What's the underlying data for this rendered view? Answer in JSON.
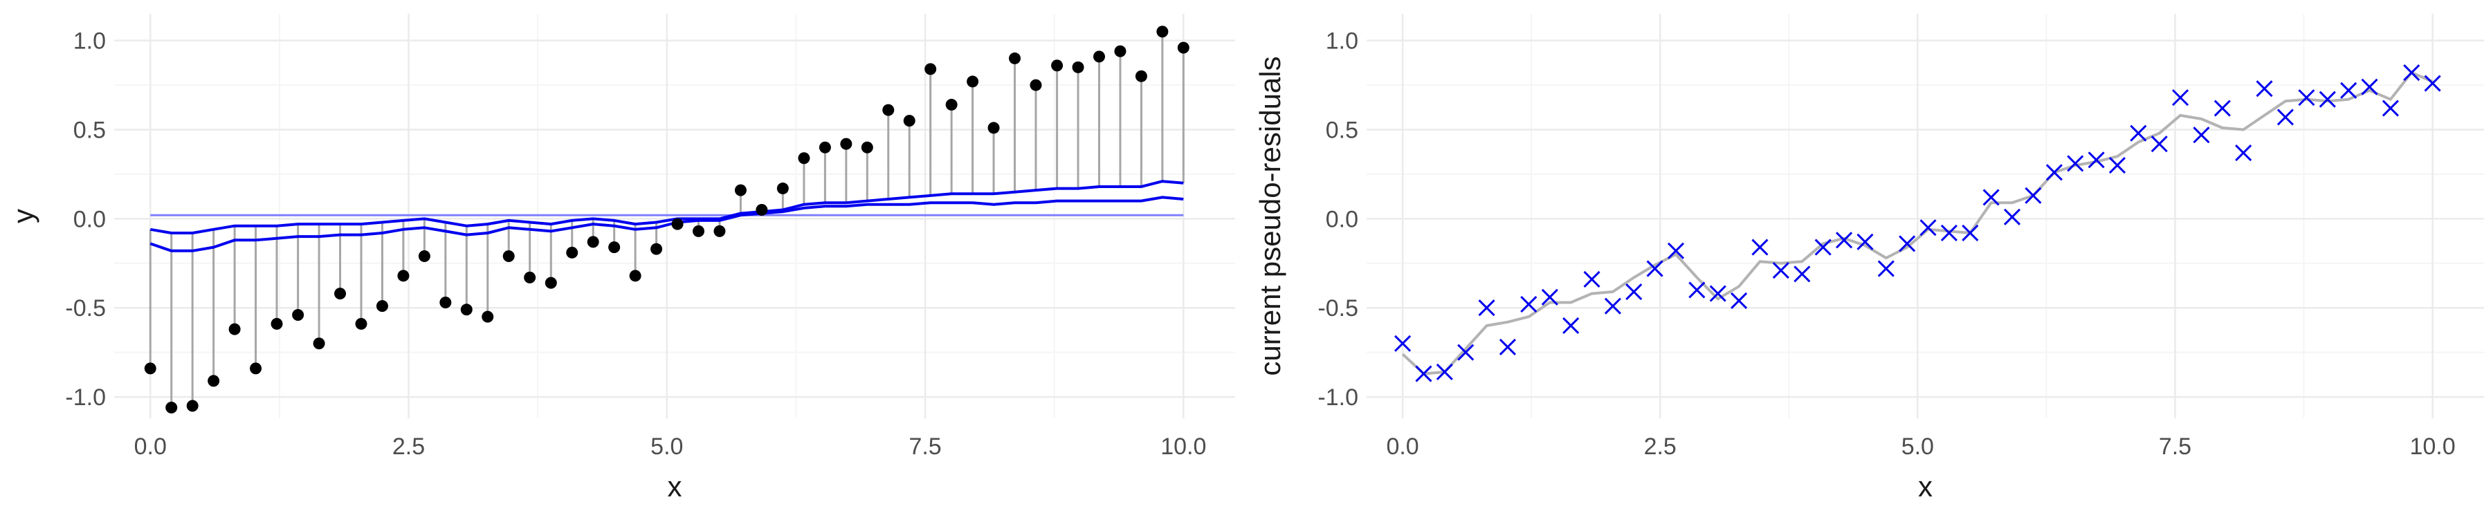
{
  "colors": {
    "background": "#ffffff",
    "grid_major": "#ebebeb",
    "grid_minor": "#f5f5f5",
    "tick_text": "#4d4d4d",
    "title_text": "#1a1a1a",
    "points": "#000000",
    "stems": "#a6a6a6",
    "fit_lines": "#0000ee",
    "baseline_line": "#8080ff",
    "crosses": "#0000ee",
    "smooth_line": "#b3b3b3"
  },
  "chart_data": [
    {
      "type": "scatter",
      "title": "",
      "xlabel": "x",
      "ylabel": "y",
      "xlim": [
        -0.35,
        10.5
      ],
      "ylim": [
        -1.12,
        1.15
      ],
      "x_ticks": [
        "0.0",
        "2.5",
        "5.0",
        "7.5",
        "10.0"
      ],
      "x_tick_values": [
        0,
        2.5,
        5,
        7.5,
        10
      ],
      "y_ticks": [
        "-1.0",
        "-0.5",
        "0.0",
        "0.5",
        "1.0"
      ],
      "y_tick_values": [
        -1,
        -0.5,
        0,
        0.5,
        1
      ],
      "grid": true,
      "legend": "none",
      "x": [
        0.0,
        0.204,
        0.408,
        0.612,
        0.816,
        1.02,
        1.224,
        1.429,
        1.633,
        1.837,
        2.041,
        2.245,
        2.449,
        2.653,
        2.857,
        3.061,
        3.265,
        3.469,
        3.673,
        3.878,
        4.082,
        4.286,
        4.49,
        4.694,
        4.898,
        5.102,
        5.306,
        5.51,
        5.714,
        5.918,
        6.122,
        6.327,
        6.531,
        6.735,
        6.939,
        7.143,
        7.347,
        7.551,
        7.755,
        7.959,
        8.163,
        8.367,
        8.571,
        8.776,
        8.98,
        9.184,
        9.388,
        9.592,
        9.796,
        10.0
      ],
      "series": [
        {
          "kind": "points_with_stems",
          "values": [
            -0.84,
            -1.06,
            -1.05,
            -0.91,
            -0.62,
            -0.84,
            -0.59,
            -0.54,
            -0.7,
            -0.42,
            -0.59,
            -0.49,
            -0.32,
            -0.21,
            -0.47,
            -0.51,
            -0.55,
            -0.21,
            -0.33,
            -0.36,
            -0.19,
            -0.13,
            -0.16,
            -0.32,
            -0.17,
            -0.03,
            -0.07,
            -0.07,
            0.16,
            0.05,
            0.17,
            0.34,
            0.4,
            0.42,
            0.4,
            0.61,
            0.55,
            0.84,
            0.64,
            0.77,
            0.51,
            0.9,
            0.75,
            0.86,
            0.85,
            0.91,
            0.94,
            0.8,
            1.05,
            0.96
          ]
        },
        {
          "kind": "line",
          "values": [
            -0.06,
            -0.08,
            -0.08,
            -0.06,
            -0.04,
            -0.04,
            -0.04,
            -0.03,
            -0.03,
            -0.03,
            -0.03,
            -0.02,
            -0.01,
            0.0,
            -0.02,
            -0.04,
            -0.03,
            -0.01,
            -0.02,
            -0.03,
            -0.01,
            0.0,
            -0.01,
            -0.03,
            -0.02,
            0.0,
            0.0,
            0.0,
            0.03,
            0.04,
            0.05,
            0.08,
            0.09,
            0.09,
            0.1,
            0.11,
            0.12,
            0.13,
            0.14,
            0.14,
            0.14,
            0.15,
            0.16,
            0.17,
            0.17,
            0.18,
            0.18,
            0.18,
            0.21,
            0.2
          ]
        },
        {
          "kind": "line",
          "values": [
            -0.14,
            -0.18,
            -0.18,
            -0.16,
            -0.12,
            -0.12,
            -0.11,
            -0.1,
            -0.1,
            -0.09,
            -0.09,
            -0.08,
            -0.06,
            -0.05,
            -0.07,
            -0.09,
            -0.08,
            -0.05,
            -0.06,
            -0.07,
            -0.05,
            -0.03,
            -0.04,
            -0.06,
            -0.05,
            -0.02,
            -0.01,
            -0.01,
            0.02,
            0.03,
            0.04,
            0.06,
            0.07,
            0.07,
            0.08,
            0.08,
            0.08,
            0.09,
            0.09,
            0.09,
            0.08,
            0.09,
            0.09,
            0.1,
            0.1,
            0.1,
            0.1,
            0.1,
            0.12,
            0.11
          ]
        },
        {
          "kind": "hline",
          "value": 0.02
        }
      ]
    },
    {
      "type": "scatter",
      "title": "",
      "xlabel": "x",
      "ylabel": "current pseudo-residuals",
      "xlim": [
        -0.35,
        10.5
      ],
      "ylim": [
        -1.12,
        1.15
      ],
      "x_ticks": [
        "0.0",
        "2.5",
        "5.0",
        "7.5",
        "10.0"
      ],
      "x_tick_values": [
        0,
        2.5,
        5,
        7.5,
        10
      ],
      "y_ticks": [
        "-1.0",
        "-0.5",
        "0.0",
        "0.5",
        "1.0"
      ],
      "y_tick_values": [
        -1,
        -0.5,
        0,
        0.5,
        1
      ],
      "grid": true,
      "legend": "none",
      "x": [
        0.0,
        0.204,
        0.408,
        0.612,
        0.816,
        1.02,
        1.224,
        1.429,
        1.633,
        1.837,
        2.041,
        2.245,
        2.449,
        2.653,
        2.857,
        3.061,
        3.265,
        3.469,
        3.673,
        3.878,
        4.082,
        4.286,
        4.49,
        4.694,
        4.898,
        5.102,
        5.306,
        5.51,
        5.714,
        5.918,
        6.122,
        6.327,
        6.531,
        6.735,
        6.939,
        7.143,
        7.347,
        7.551,
        7.755,
        7.959,
        8.163,
        8.367,
        8.571,
        8.776,
        8.98,
        9.184,
        9.388,
        9.592,
        9.796,
        10.0
      ],
      "series": [
        {
          "kind": "crosses",
          "values": [
            -0.7,
            -0.87,
            -0.86,
            -0.75,
            -0.5,
            -0.72,
            -0.48,
            -0.44,
            -0.6,
            -0.34,
            -0.49,
            -0.41,
            -0.28,
            -0.18,
            -0.4,
            -0.42,
            -0.46,
            -0.16,
            -0.29,
            -0.31,
            -0.16,
            -0.12,
            -0.13,
            -0.28,
            -0.14,
            -0.05,
            -0.08,
            -0.08,
            0.12,
            0.01,
            0.13,
            0.26,
            0.31,
            0.33,
            0.3,
            0.48,
            0.42,
            0.68,
            0.47,
            0.62,
            0.37,
            0.73,
            0.57,
            0.68,
            0.67,
            0.72,
            0.74,
            0.62,
            0.82,
            0.76
          ]
        },
        {
          "kind": "line",
          "values": [
            -0.76,
            -0.87,
            -0.86,
            -0.73,
            -0.6,
            -0.58,
            -0.55,
            -0.47,
            -0.47,
            -0.42,
            -0.41,
            -0.33,
            -0.26,
            -0.2,
            -0.33,
            -0.45,
            -0.38,
            -0.24,
            -0.25,
            -0.24,
            -0.14,
            -0.11,
            -0.15,
            -0.22,
            -0.16,
            -0.06,
            -0.07,
            -0.08,
            0.09,
            0.09,
            0.13,
            0.26,
            0.3,
            0.32,
            0.35,
            0.43,
            0.48,
            0.58,
            0.56,
            0.51,
            0.5,
            0.58,
            0.66,
            0.67,
            0.66,
            0.67,
            0.72,
            0.67,
            0.82,
            0.77
          ]
        }
      ]
    }
  ]
}
